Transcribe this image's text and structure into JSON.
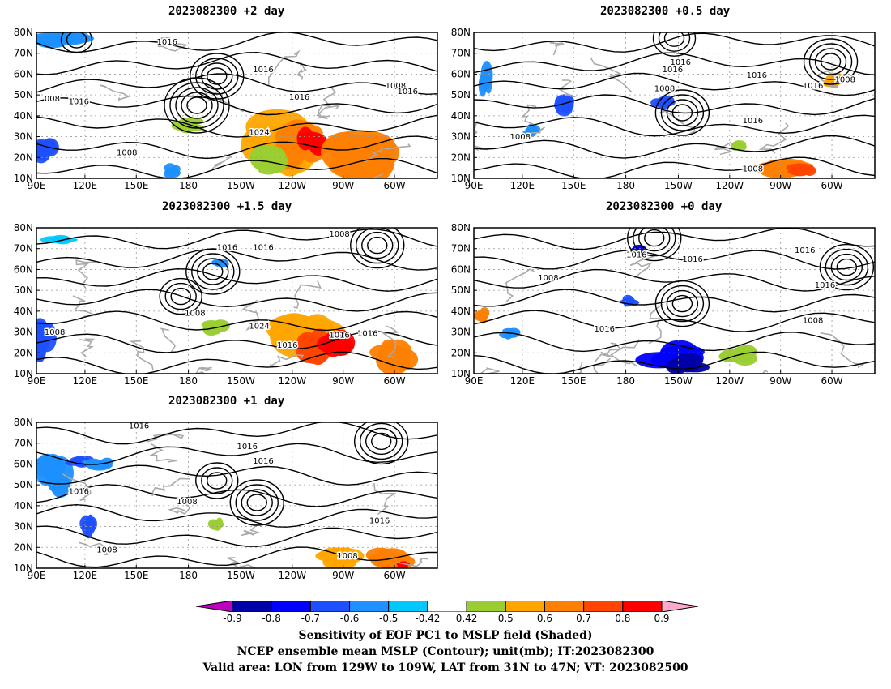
{
  "panels": [
    {
      "title": "2023082300 +2 day",
      "contour_labels": [
        "1016",
        "1016",
        "1016",
        "1008",
        "1016",
        "1016",
        "1024",
        "1008",
        "008"
      ]
    },
    {
      "title": "2023082300 +0.5 day",
      "contour_labels": [
        "1016",
        "1016",
        "1016",
        "1008",
        "1016",
        "1016",
        "1008",
        "1008",
        "1008"
      ]
    },
    {
      "title": "2023082300 +1.5 day",
      "contour_labels": [
        "1008",
        "1016",
        "1016",
        "1008",
        "1024",
        "1016",
        "1016",
        "1016",
        "1008"
      ]
    },
    {
      "title": "2023082300 +0 day",
      "contour_labels": [
        "1016",
        "1016",
        "1008",
        "1008",
        "1016",
        "1016",
        "1016"
      ]
    },
    {
      "title": "2023082300 +1 day",
      "contour_labels": [
        "1016",
        "1016",
        "1016",
        "1008",
        "1016",
        "1016",
        "1008",
        "1008"
      ]
    }
  ],
  "axes": {
    "lat_labels": [
      "80N",
      "70N",
      "60N",
      "50N",
      "40N",
      "30N",
      "20N",
      "10N"
    ],
    "lon_labels": [
      "90E",
      "120E",
      "150E",
      "180",
      "150W",
      "120W",
      "90W",
      "60W"
    ]
  },
  "colorbar": {
    "labels": [
      "-0.9",
      "-0.8",
      "-0.7",
      "-0.6",
      "-0.5",
      "-0.42",
      "0.42",
      "0.5",
      "0.6",
      "0.7",
      "0.8",
      "0.9"
    ],
    "colors": [
      "#0000a8",
      "#0000ff",
      "#1e50ff",
      "#1e90ff",
      "#00c8ff",
      "#ffffff",
      "#9acd32",
      "#ffa500",
      "#ff7f00",
      "#ff4500",
      "#ff0000"
    ],
    "low_color": "#c000c0",
    "high_color": "#ffaacc"
  },
  "caption": {
    "line1": "Sensitivity of EOF PC1 to MSLP field (Shaded)",
    "line2": "NCEP ensemble mean MSLP (Contour); unit(mb); IT:2023082300",
    "line3": "Valid area: LON from 129W to 109W, LAT from 31N to 47N; VT: 2023082500"
  }
}
